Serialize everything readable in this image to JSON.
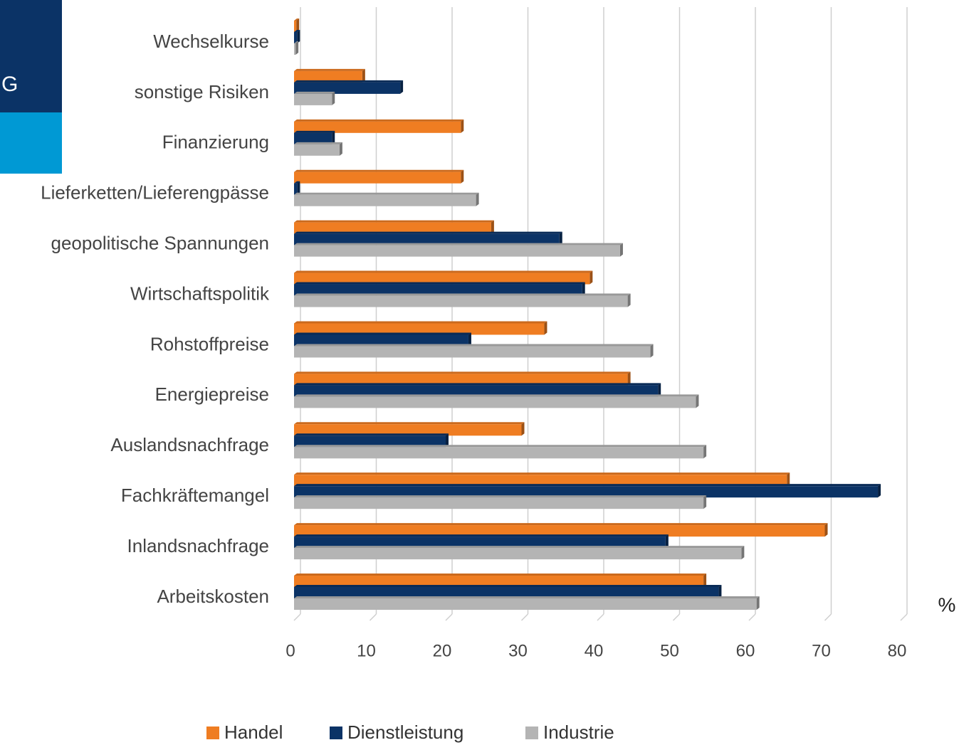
{
  "sidebar": {
    "label": "G"
  },
  "chart_data": {
    "type": "bar",
    "orientation": "horizontal",
    "unit_label": "%",
    "categories": [
      "Wechselkurse",
      "sonstige Risiken",
      "Finanzierung",
      "Lieferketten/Lieferengpässe",
      "geopolitische Spannungen",
      "Wirtschaftspolitik",
      "Rohstoffpreise",
      "Energiepreise",
      "Auslandsnachfrage",
      "Fachkräftemangel",
      "Inlandsnachfrage",
      "Arbeitskosten"
    ],
    "series": [
      {
        "name": "Handel",
        "color": "#ef7d22",
        "values": [
          0.3,
          9,
          22,
          22,
          26,
          39,
          33,
          44,
          30,
          65,
          70,
          54
        ]
      },
      {
        "name": "Dienstleistung",
        "color": "#0b3366",
        "values": [
          0.4,
          14,
          5,
          0.4,
          35,
          38,
          23,
          48,
          20,
          77,
          49,
          56
        ]
      },
      {
        "name": "Industrie",
        "color": "#b4b4b4",
        "values": [
          0.2,
          5,
          6,
          24,
          43,
          44,
          47,
          53,
          54,
          54,
          59,
          61
        ]
      }
    ],
    "xlim": [
      0,
      80
    ],
    "xticks": [
      0,
      10,
      20,
      30,
      40,
      50,
      60,
      70,
      80
    ],
    "grid": true,
    "legend": "bottom"
  }
}
